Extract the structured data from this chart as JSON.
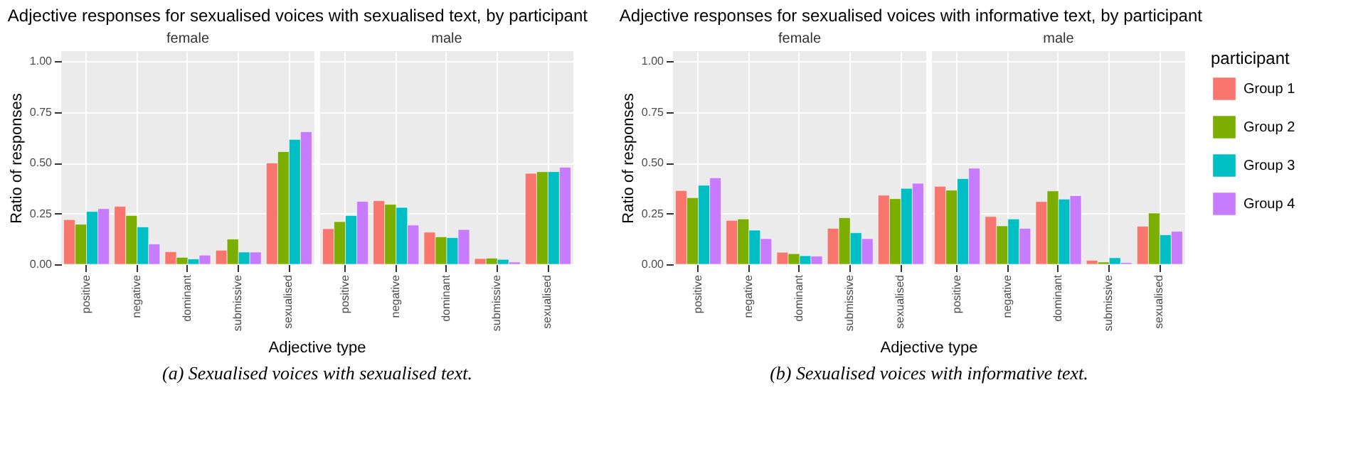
{
  "chart_data": [
    {
      "type": "bar",
      "title": "Adjective responses for sexualised voices with sexualised text, by participant",
      "subtitle": "female",
      "xlabel": "Adjective type",
      "ylabel": "Ratio of responses",
      "annotations": [
        "(a) Sexualised voices with sexualised text."
      ],
      "categories": [
        "positive",
        "negative",
        "dominant",
        "submissive",
        "sexualised"
      ],
      "ylim": [
        0,
        1.05
      ],
      "yticks": [
        {
          "value": 0,
          "label": "0.00"
        },
        {
          "value": 0.25,
          "label": "0.25"
        },
        {
          "value": 0.5,
          "label": "0.50"
        },
        {
          "value": 0.75,
          "label": "0.75"
        },
        {
          "value": 1,
          "label": "1.00"
        }
      ],
      "grid": true,
      "series": [
        {
          "color": "#f8766d",
          "values": [
            0.22,
            0.285,
            0.062,
            0.069,
            0.499
          ]
        },
        {
          "color": "#7cae00",
          "values": [
            0.197,
            0.24,
            0.034,
            0.124,
            0.555
          ]
        },
        {
          "color": "#00bfc4",
          "values": [
            0.26,
            0.184,
            0.026,
            0.06,
            0.615
          ]
        },
        {
          "color": "#c77cff",
          "values": [
            0.274,
            0.1,
            0.045,
            0.06,
            0.653
          ]
        }
      ]
    },
    {
      "type": "bar",
      "subtitle": "male",
      "categories": [
        "positive",
        "negative",
        "dominant",
        "submissive",
        "sexualised"
      ],
      "ylim": [
        0,
        1.05
      ],
      "yticks": [
        0,
        0.25,
        0.5,
        0.75,
        1
      ],
      "grid": true,
      "tick_labels": "x",
      "series": [
        {
          "color": "#f8766d",
          "values": [
            0.175,
            0.313,
            0.158,
            0.028,
            0.448
          ]
        },
        {
          "color": "#7cae00",
          "values": [
            0.21,
            0.295,
            0.135,
            0.03,
            0.456
          ]
        },
        {
          "color": "#00bfc4",
          "values": [
            0.24,
            0.28,
            0.131,
            0.024,
            0.456
          ]
        },
        {
          "color": "#c77cff",
          "values": [
            0.31,
            0.193,
            0.171,
            0.011,
            0.478
          ]
        }
      ]
    },
    {
      "type": "bar",
      "title": "Adjective responses for sexualised voices with informative text, by participant",
      "subtitle": "female",
      "xlabel": "Adjective type",
      "ylabel": "Ratio of responses",
      "annotations": [
        "(b) Sexualised voices with informative text."
      ],
      "categories": [
        "positive",
        "negative",
        "dominant",
        "submissive",
        "sexualised"
      ],
      "ylim": [
        0,
        1.05
      ],
      "yticks": [
        {
          "value": 0,
          "label": "0.00"
        },
        {
          "value": 0.25,
          "label": "0.25"
        },
        {
          "value": 0.5,
          "label": "0.50"
        },
        {
          "value": 0.75,
          "label": "0.75"
        },
        {
          "value": 1,
          "label": "1.00"
        }
      ],
      "grid": true,
      "series": [
        {
          "color": "#f8766d",
          "values": [
            0.363,
            0.216,
            0.059,
            0.177,
            0.34
          ]
        },
        {
          "color": "#7cae00",
          "values": [
            0.328,
            0.223,
            0.052,
            0.229,
            0.323
          ]
        },
        {
          "color": "#00bfc4",
          "values": [
            0.389,
            0.168,
            0.042,
            0.155,
            0.374
          ]
        },
        {
          "color": "#c77cff",
          "values": [
            0.426,
            0.126,
            0.04,
            0.126,
            0.399
          ]
        }
      ]
    },
    {
      "type": "bar",
      "subtitle": "male",
      "legend_title": "participant",
      "legend": "right",
      "categories": [
        "positive",
        "negative",
        "dominant",
        "submissive",
        "sexualised"
      ],
      "ylim": [
        0,
        1.05
      ],
      "yticks": [
        0,
        0.25,
        0.5,
        0.75,
        1
      ],
      "grid": true,
      "tick_labels": "x",
      "series": [
        {
          "name": "Group 1",
          "color": "#f8766d",
          "values": [
            0.384,
            0.235,
            0.309,
            0.019,
            0.187
          ]
        },
        {
          "name": "Group 2",
          "color": "#7cae00",
          "values": [
            0.365,
            0.189,
            0.361,
            0.011,
            0.252
          ]
        },
        {
          "name": "Group 3",
          "color": "#00bfc4",
          "values": [
            0.422,
            0.223,
            0.321,
            0.032,
            0.145
          ]
        },
        {
          "name": "Group 4",
          "color": "#c77cff",
          "values": [
            0.473,
            0.177,
            0.338,
            0.008,
            0.162
          ]
        }
      ]
    }
  ]
}
